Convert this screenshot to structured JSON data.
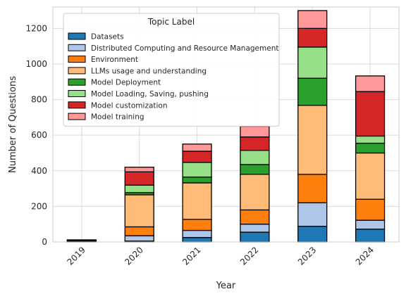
{
  "chart_data": {
    "type": "bar",
    "stacked": true,
    "categories": [
      "2019",
      "2020",
      "2021",
      "2022",
      "2023",
      "2024"
    ],
    "xlabel": "Year",
    "ylabel": "Number of Questions",
    "ylim": [
      0,
      1320
    ],
    "yticks": [
      0,
      200,
      400,
      600,
      800,
      1000,
      1200
    ],
    "grid": true,
    "legend": {
      "title": "Topic Label",
      "placement": "top-left"
    },
    "series": [
      {
        "name": "Datasets",
        "color": "#1f77b4",
        "values": [
          2,
          5,
          25,
          55,
          88,
          72
        ]
      },
      {
        "name": "Distributed Computing and Resource Management",
        "color": "#aec7e8",
        "values": [
          1,
          30,
          40,
          45,
          132,
          50
        ]
      },
      {
        "name": "Environment",
        "color": "#ff7f0e",
        "values": [
          1,
          50,
          62,
          80,
          160,
          118
        ]
      },
      {
        "name": "LLMs usage and understanding",
        "color": "#ffbb78",
        "values": [
          3,
          180,
          205,
          200,
          388,
          260
        ]
      },
      {
        "name": "Model Deployment",
        "color": "#2ca02c",
        "values": [
          1,
          12,
          33,
          55,
          152,
          55
        ]
      },
      {
        "name": "Model Loading, Saving, pushing",
        "color": "#98df8a",
        "values": [
          1,
          42,
          82,
          80,
          175,
          40
        ]
      },
      {
        "name": "Model customization",
        "color": "#d62728",
        "values": [
          2,
          75,
          63,
          75,
          105,
          250
        ]
      },
      {
        "name": "Model training",
        "color": "#ff9896",
        "values": [
          1,
          26,
          40,
          60,
          100,
          88
        ]
      }
    ]
  }
}
